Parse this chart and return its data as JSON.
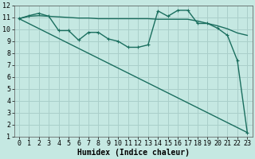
{
  "xlabel": "Humidex (Indice chaleur)",
  "ylabel": "",
  "xlim": [
    -0.5,
    23.5
  ],
  "ylim": [
    1,
    12
  ],
  "xtick_vals": [
    0,
    1,
    2,
    3,
    4,
    5,
    6,
    7,
    8,
    9,
    10,
    11,
    12,
    13,
    14,
    15,
    16,
    17,
    18,
    19,
    20,
    21,
    22,
    23
  ],
  "ytick_vals": [
    1,
    2,
    3,
    4,
    5,
    6,
    7,
    8,
    9,
    10,
    11,
    12
  ],
  "bg_color": "#c5e8e2",
  "grid_color": "#aacfca",
  "line_color": "#1a6e5e",
  "line1_x": [
    0,
    1,
    2,
    3,
    4,
    5,
    6,
    7,
    8,
    9,
    10,
    11,
    12,
    13,
    14,
    15,
    16,
    17,
    18,
    19,
    20,
    21,
    22,
    23
  ],
  "line1_y": [
    10.9,
    11.1,
    11.15,
    11.1,
    11.05,
    11.0,
    10.95,
    10.95,
    10.9,
    10.9,
    10.9,
    10.9,
    10.9,
    10.9,
    10.85,
    10.85,
    10.85,
    10.85,
    10.7,
    10.5,
    10.3,
    10.05,
    9.7,
    9.5
  ],
  "line2_x": [
    0,
    1,
    2,
    3,
    4,
    5,
    6,
    7,
    8,
    9,
    10,
    11,
    12,
    13,
    14,
    15,
    16,
    17,
    18,
    19,
    20,
    21,
    22,
    23
  ],
  "line2_y": [
    10.9,
    11.15,
    11.35,
    11.1,
    9.9,
    9.9,
    9.1,
    9.75,
    9.75,
    9.2,
    9.0,
    8.5,
    8.5,
    8.7,
    11.55,
    11.1,
    11.6,
    11.6,
    10.5,
    10.5,
    10.1,
    9.5,
    7.4,
    1.35
  ],
  "line3_x": [
    0,
    23
  ],
  "line3_y": [
    10.9,
    1.35
  ],
  "tick_fontsize": 6,
  "label_fontsize": 7
}
